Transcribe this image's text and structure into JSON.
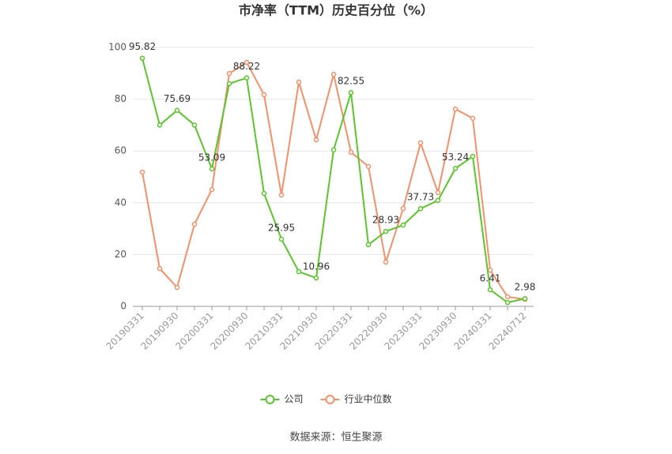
{
  "chart_data": {
    "type": "line",
    "title": "市净率（TTM）历史百分位（%）",
    "categories": [
      "20190331",
      null,
      "20190930",
      null,
      "20200331",
      null,
      "20200930",
      null,
      "20210331",
      null,
      "20210930",
      null,
      "20220331",
      null,
      "20220930",
      null,
      "20230331",
      null,
      "20230930",
      null,
      "20240331",
      null,
      "20240712"
    ],
    "series": [
      {
        "name": "公司",
        "color": "#5ac62c",
        "values": [
          95.82,
          70,
          75.69,
          70,
          53.09,
          86,
          88.22,
          43.6,
          25.95,
          13.4,
          10.96,
          60.4,
          82.55,
          23.8,
          28.93,
          31.4,
          37.73,
          40.9,
          53.24,
          57.9,
          6.41,
          1.5,
          2.98
        ]
      },
      {
        "name": "行业中位数",
        "color": "#f5906a",
        "values": [
          51.8,
          14.6,
          7.3,
          31.7,
          45.1,
          89.9,
          94.2,
          81.7,
          43,
          86.6,
          64.3,
          89.6,
          59.5,
          54,
          17.1,
          37.8,
          63.1,
          43.9,
          76.2,
          72.6,
          14,
          3.7,
          2.7
        ]
      }
    ],
    "ylim": [
      0,
      100
    ],
    "yticks": [
      0,
      20,
      40,
      60,
      80,
      100
    ],
    "grid": true,
    "legend": "bottom",
    "source": "数据来源：恒生聚源"
  }
}
